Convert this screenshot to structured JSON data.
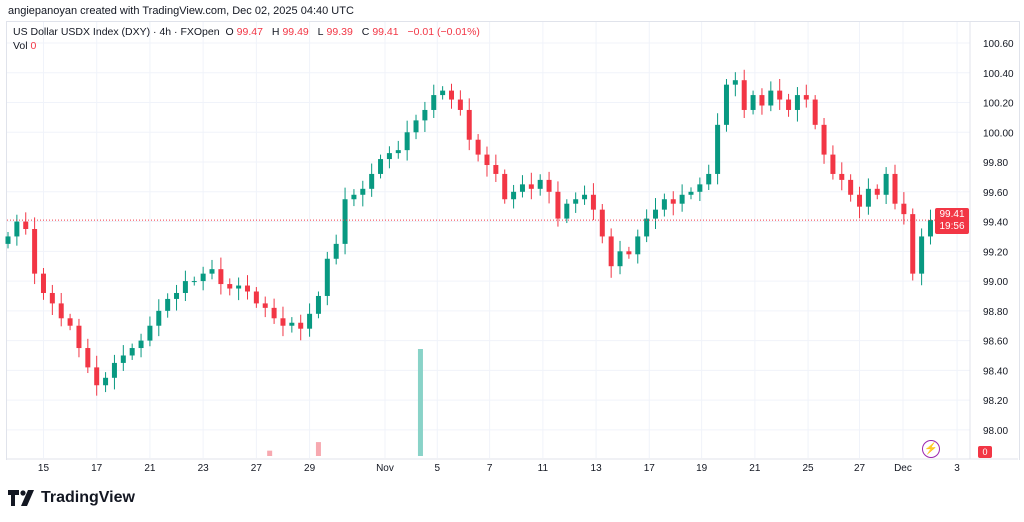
{
  "header": {
    "credit": "angiepanoyan created with TradingView.com, Dec 02, 2025 04:40 UTC",
    "symbol": "US Dollar USDX Index (DXY) · 4h · FXOpen",
    "open_label": "O",
    "open": "99.47",
    "high_label": "H",
    "high": "99.49",
    "low_label": "L",
    "low": "99.39",
    "close_label": "C",
    "close": "99.41",
    "change": "−0.01 (−0.01%)",
    "vol_label": "Vol",
    "vol_value": "0"
  },
  "price_badge": {
    "price": "99.41",
    "countdown": "19:56"
  },
  "vol_badge": "0",
  "brand": "TradingView",
  "colors": {
    "up": "#089981",
    "down": "#f23645",
    "grid": "#f0f3fa",
    "volume_up": "#89d3c8",
    "volume_down": "#f7a9b0"
  },
  "chart_data": {
    "type": "candlestick",
    "title": "US Dollar USDX Index (DXY) · 4h · FXOpen",
    "ylim": [
      97.9,
      100.7
    ],
    "y_ticks": [
      "100.60",
      "100.40",
      "100.20",
      "100.00",
      "99.80",
      "99.60",
      "99.40",
      "99.20",
      "99.00",
      "98.80",
      "98.60",
      "98.40",
      "98.20",
      "98.00"
    ],
    "x_ticks": [
      {
        "label": "15",
        "index": 4
      },
      {
        "label": "17",
        "index": 10
      },
      {
        "label": "21",
        "index": 16
      },
      {
        "label": "23",
        "index": 22
      },
      {
        "label": "27",
        "index": 28
      },
      {
        "label": "29",
        "index": 34
      },
      {
        "label": "Nov",
        "index": 42.5
      },
      {
        "label": "5",
        "index": 48.4
      },
      {
        "label": "7",
        "index": 54.3
      },
      {
        "label": "11",
        "index": 60.3
      },
      {
        "label": "13",
        "index": 66.3
      },
      {
        "label": "17",
        "index": 72.3
      },
      {
        "label": "19",
        "index": 78.2
      },
      {
        "label": "21",
        "index": 84.2
      },
      {
        "label": "25",
        "index": 90.2
      },
      {
        "label": "27",
        "index": 96
      },
      {
        "label": "Dec",
        "index": 100.9
      },
      {
        "label": "3",
        "index": 107
      }
    ],
    "first_open": 99.25,
    "closes": [
      99.3,
      99.4,
      99.35,
      99.05,
      98.92,
      98.85,
      98.75,
      98.7,
      98.55,
      98.42,
      98.3,
      98.35,
      98.45,
      98.5,
      98.55,
      98.6,
      98.7,
      98.8,
      98.88,
      98.92,
      99.0,
      99.0,
      99.05,
      99.08,
      98.98,
      98.95,
      98.97,
      98.93,
      98.85,
      98.82,
      98.75,
      98.7,
      98.72,
      98.68,
      98.78,
      98.9,
      99.15,
      99.25,
      99.55,
      99.58,
      99.62,
      99.72,
      99.82,
      99.86,
      99.88,
      100.0,
      100.08,
      100.15,
      100.25,
      100.28,
      100.22,
      100.15,
      99.95,
      99.85,
      99.78,
      99.72,
      99.55,
      99.6,
      99.65,
      99.62,
      99.68,
      99.6,
      99.42,
      99.52,
      99.55,
      99.58,
      99.48,
      99.3,
      99.1,
      99.2,
      99.18,
      99.3,
      99.42,
      99.48,
      99.55,
      99.52,
      99.58,
      99.6,
      99.65,
      99.72,
      100.05,
      100.32,
      100.35,
      100.15,
      100.25,
      100.18,
      100.28,
      100.22,
      100.15,
      100.25,
      100.22,
      100.05,
      99.85,
      99.72,
      99.68,
      99.58,
      99.5,
      99.62,
      99.58,
      99.72,
      99.52,
      99.45,
      99.05,
      99.3,
      99.41
    ],
    "last_price": 99.41,
    "volume": [
      {
        "index": 29.5,
        "value": 0.05,
        "dir": "down"
      },
      {
        "index": 35,
        "value": 0.13,
        "dir": "down"
      },
      {
        "index": 46.5,
        "value": 1.0,
        "dir": "up"
      }
    ]
  }
}
